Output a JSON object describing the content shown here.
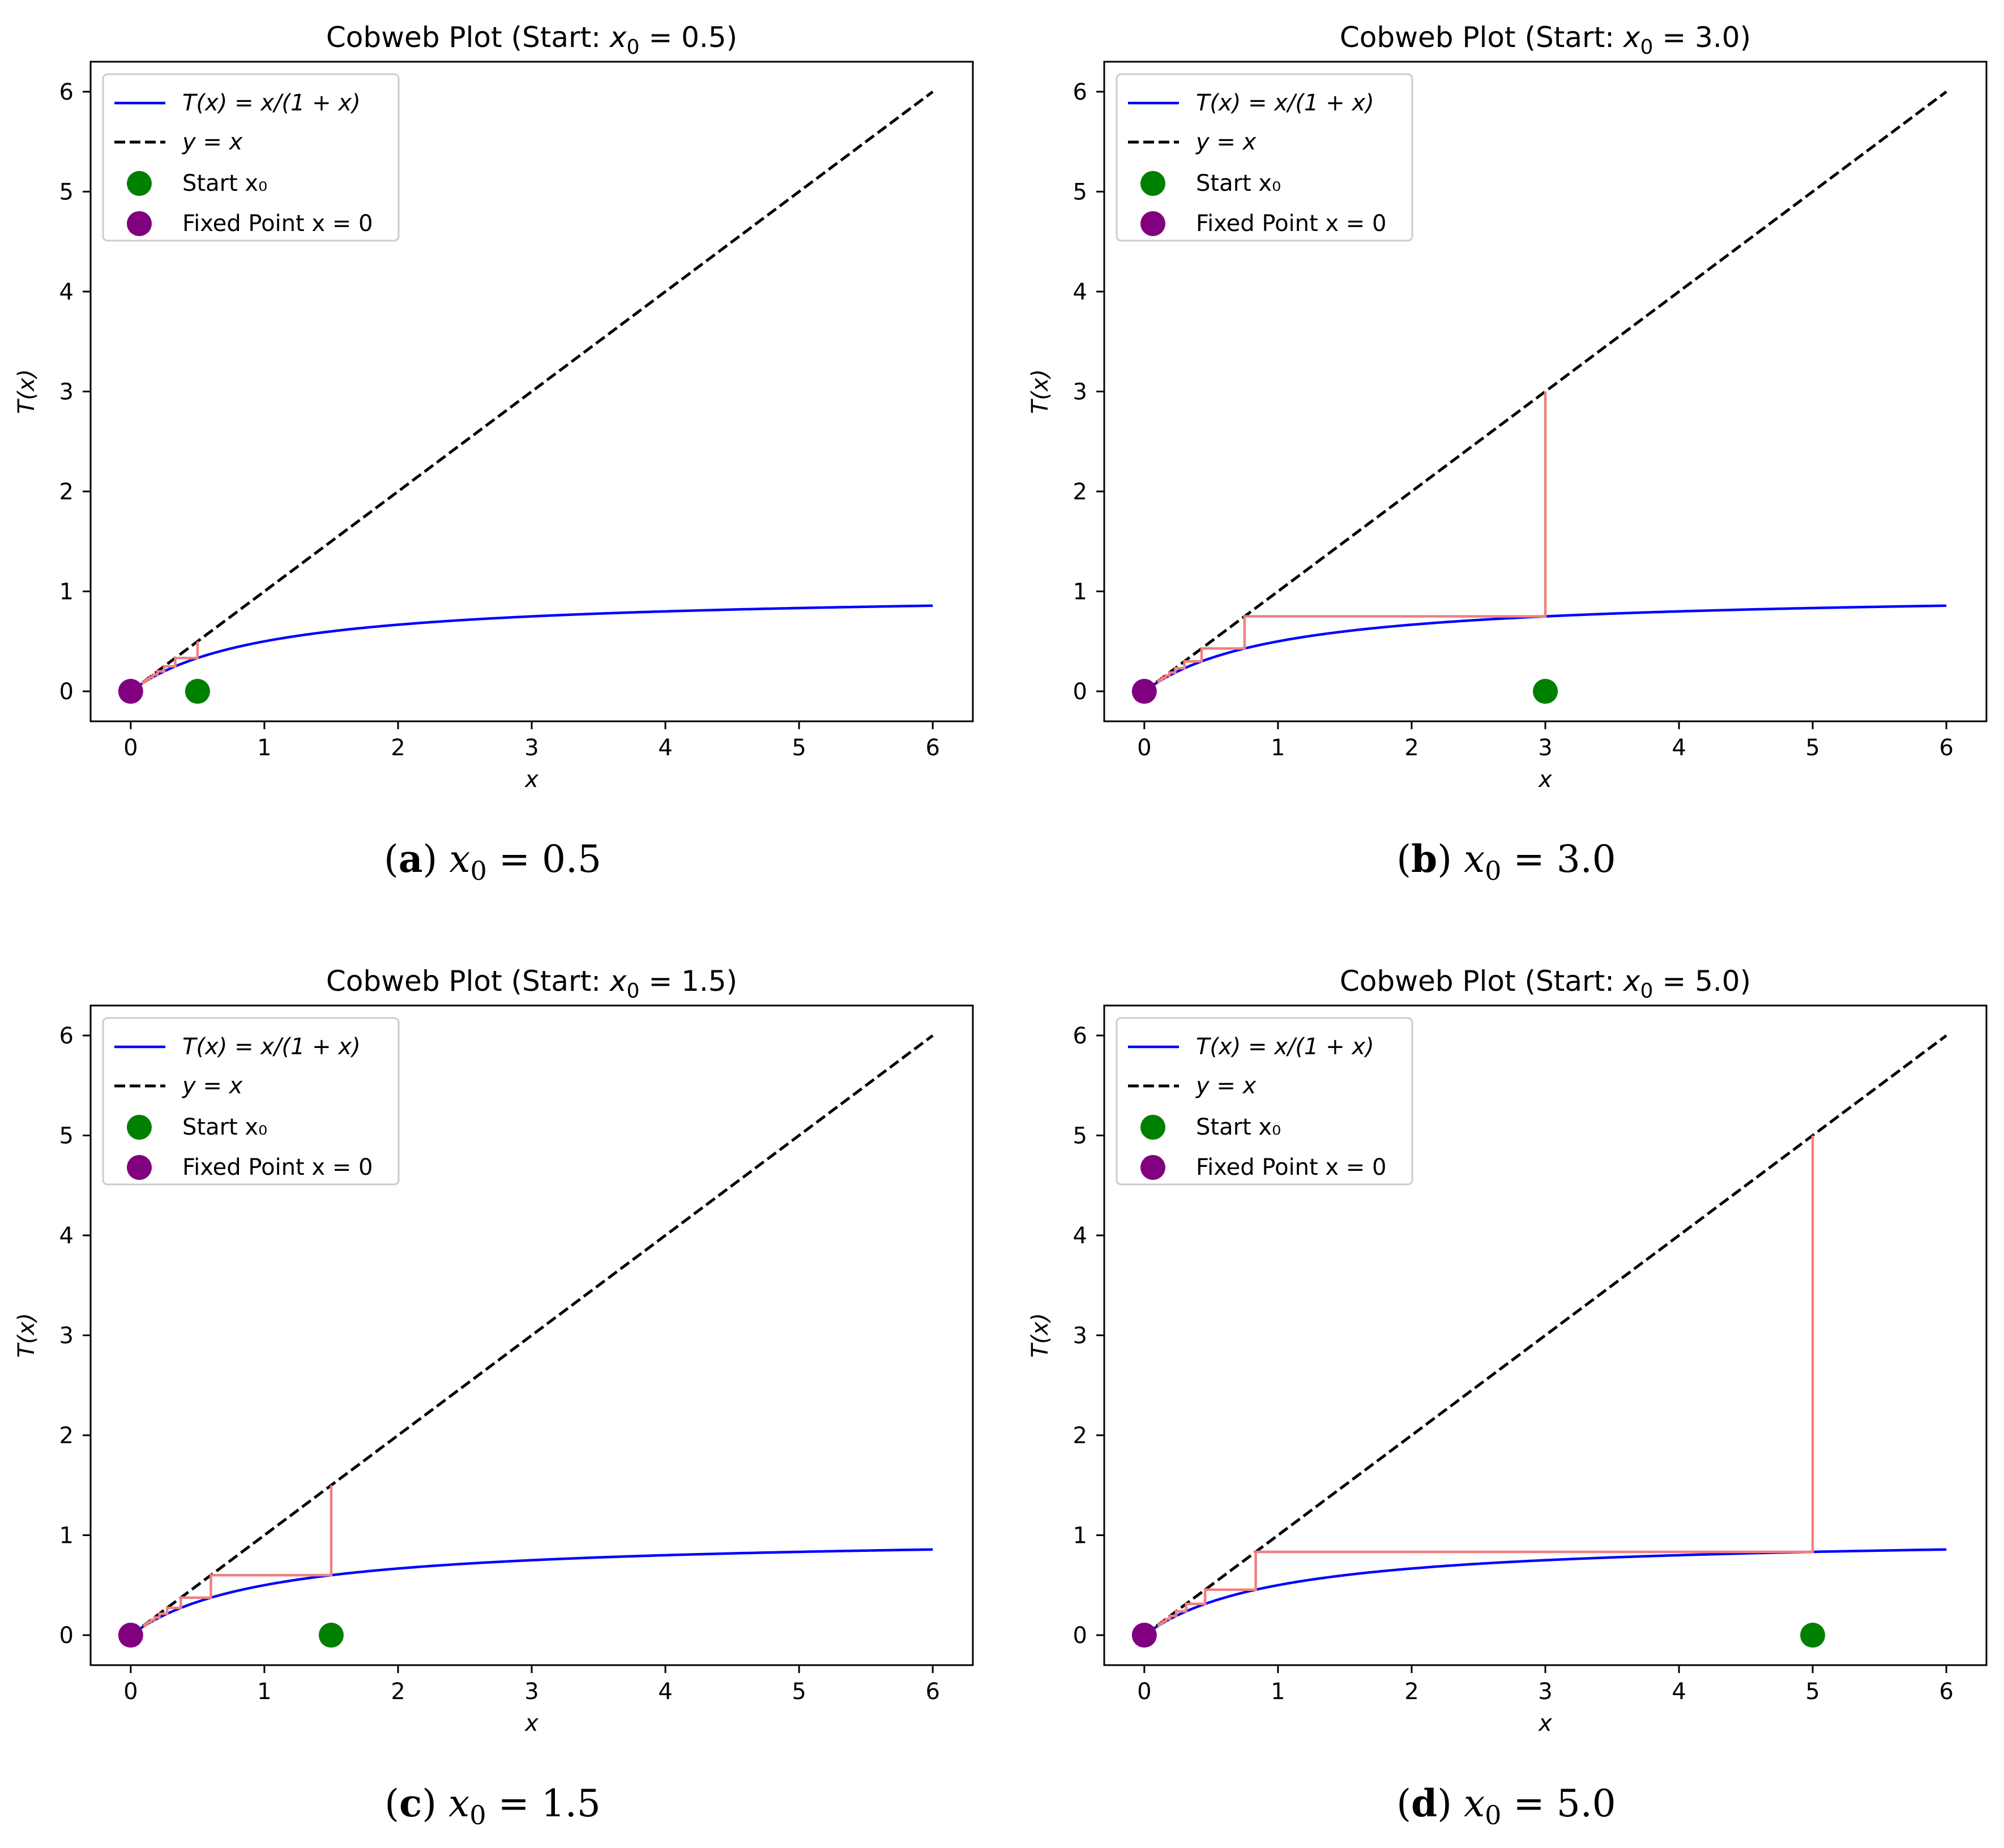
{
  "figure": {
    "panels": [
      {
        "id": "a",
        "caption_label": "(a)",
        "caption_var": "x",
        "caption_sub": "0",
        "caption_rhs": "= 0.5",
        "title_prefix": "Cobweb Plot (Start: ",
        "title_var": "x",
        "title_sub": "0",
        "title_suffix": " = 0.5)"
      },
      {
        "id": "b",
        "caption_label": "(b)",
        "caption_var": "x",
        "caption_sub": "0",
        "caption_rhs": "= 3.0",
        "title_prefix": "Cobweb Plot (Start: ",
        "title_var": "x",
        "title_sub": "0",
        "title_suffix": " = 3.0)"
      },
      {
        "id": "c",
        "caption_label": "(c)",
        "caption_var": "x",
        "caption_sub": "0",
        "caption_rhs": "= 1.5",
        "title_prefix": "Cobweb Plot (Start: ",
        "title_var": "x",
        "title_sub": "0",
        "title_suffix": " = 1.5)"
      },
      {
        "id": "d",
        "caption_label": "(d)",
        "caption_var": "x",
        "caption_sub": "0",
        "caption_rhs": "= 5.0",
        "title_prefix": "Cobweb Plot (Start: ",
        "title_var": "x",
        "title_sub": "0",
        "title_suffix": " = 5.0)"
      }
    ],
    "legend": [
      {
        "key": "curve",
        "text": "T(x) = x/(1 + x)"
      },
      {
        "key": "identity",
        "text": "y = x"
      },
      {
        "key": "start",
        "text": "Start x₀"
      },
      {
        "key": "fixed",
        "text": "Fixed Point x = 0"
      }
    ],
    "colors": {
      "curve": "#0000ff",
      "identity": "#000000",
      "cobweb": "#f08080",
      "start": "#008000",
      "fixed": "#800080",
      "legend_border": "#cccccc"
    }
  },
  "chart_data": [
    {
      "type": "line",
      "title": "Cobweb Plot (Start: x₀ = 0.5)",
      "xlabel": "x",
      "ylabel": "T(x)",
      "xlim": [
        -0.3,
        6.3
      ],
      "ylim": [
        -0.3,
        6.3
      ],
      "xticks": [
        0,
        1,
        2,
        3,
        4,
        5,
        6
      ],
      "yticks": [
        0,
        1,
        2,
        3,
        4,
        5,
        6
      ],
      "grid": false,
      "legend_position": "upper-left",
      "x0": 0.5,
      "iterations": 10,
      "series": [
        {
          "name": "T(x) = x/(1 + x)",
          "style": "solid",
          "domain": [
            0,
            6
          ],
          "expr": "x/(1+x)"
        },
        {
          "name": "y = x",
          "style": "dashed",
          "domain": [
            0,
            6
          ],
          "expr": "x"
        },
        {
          "name": "cobweb",
          "style": "solid"
        },
        {
          "name": "Start x₀",
          "style": "marker",
          "point": [
            0.5,
            0
          ]
        },
        {
          "name": "Fixed Point x = 0",
          "style": "marker",
          "point": [
            0,
            0
          ]
        }
      ]
    },
    {
      "type": "line",
      "title": "Cobweb Plot (Start: x₀ = 3.0)",
      "xlabel": "x",
      "ylabel": "T(x)",
      "xlim": [
        -0.3,
        6.3
      ],
      "ylim": [
        -0.3,
        6.3
      ],
      "xticks": [
        0,
        1,
        2,
        3,
        4,
        5,
        6
      ],
      "yticks": [
        0,
        1,
        2,
        3,
        4,
        5,
        6
      ],
      "grid": false,
      "legend_position": "upper-left",
      "x0": 3.0,
      "iterations": 10,
      "series": [
        {
          "name": "T(x) = x/(1 + x)",
          "style": "solid",
          "domain": [
            0,
            6
          ],
          "expr": "x/(1+x)"
        },
        {
          "name": "y = x",
          "style": "dashed",
          "domain": [
            0,
            6
          ],
          "expr": "x"
        },
        {
          "name": "cobweb",
          "style": "solid"
        },
        {
          "name": "Start x₀",
          "style": "marker",
          "point": [
            3.0,
            0
          ]
        },
        {
          "name": "Fixed Point x = 0",
          "style": "marker",
          "point": [
            0,
            0
          ]
        }
      ]
    },
    {
      "type": "line",
      "title": "Cobweb Plot (Start: x₀ = 1.5)",
      "xlabel": "x",
      "ylabel": "T(x)",
      "xlim": [
        -0.3,
        6.3
      ],
      "ylim": [
        -0.3,
        6.3
      ],
      "xticks": [
        0,
        1,
        2,
        3,
        4,
        5,
        6
      ],
      "yticks": [
        0,
        1,
        2,
        3,
        4,
        5,
        6
      ],
      "grid": false,
      "legend_position": "upper-left",
      "x0": 1.5,
      "iterations": 10,
      "series": [
        {
          "name": "T(x) = x/(1 + x)",
          "style": "solid",
          "domain": [
            0,
            6
          ],
          "expr": "x/(1+x)"
        },
        {
          "name": "y = x",
          "style": "dashed",
          "domain": [
            0,
            6
          ],
          "expr": "x"
        },
        {
          "name": "cobweb",
          "style": "solid"
        },
        {
          "name": "Start x₀",
          "style": "marker",
          "point": [
            1.5,
            0
          ]
        },
        {
          "name": "Fixed Point x = 0",
          "style": "marker",
          "point": [
            0,
            0
          ]
        }
      ]
    },
    {
      "type": "line",
      "title": "Cobweb Plot (Start: x₀ = 5.0)",
      "xlabel": "x",
      "ylabel": "T(x)",
      "xlim": [
        -0.3,
        6.3
      ],
      "ylim": [
        -0.3,
        6.3
      ],
      "xticks": [
        0,
        1,
        2,
        3,
        4,
        5,
        6
      ],
      "yticks": [
        0,
        1,
        2,
        3,
        4,
        5,
        6
      ],
      "grid": false,
      "legend_position": "upper-left",
      "x0": 5.0,
      "iterations": 10,
      "series": [
        {
          "name": "T(x) = x/(1 + x)",
          "style": "solid",
          "domain": [
            0,
            6
          ],
          "expr": "x/(1+x)"
        },
        {
          "name": "y = x",
          "style": "dashed",
          "domain": [
            0,
            6
          ],
          "expr": "x"
        },
        {
          "name": "cobweb",
          "style": "solid"
        },
        {
          "name": "Start x₀",
          "style": "marker",
          "point": [
            5.0,
            0
          ]
        },
        {
          "name": "Fixed Point x = 0",
          "style": "marker",
          "point": [
            0,
            0
          ]
        }
      ]
    }
  ]
}
